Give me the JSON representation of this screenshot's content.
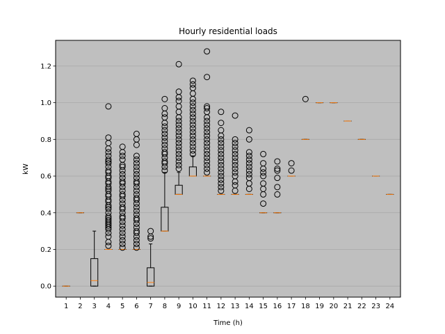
{
  "chart_data": {
    "type": "box",
    "title": "Hourly residential loads",
    "xlabel": "Time (h)",
    "ylabel": "kW",
    "categories": [
      "1",
      "2",
      "3",
      "4",
      "5",
      "6",
      "7",
      "8",
      "9",
      "10",
      "11",
      "12",
      "13",
      "14",
      "15",
      "16",
      "17",
      "18",
      "19",
      "20",
      "21",
      "22",
      "23",
      "24"
    ],
    "ylim": [
      -0.06,
      1.34
    ],
    "yticks": [
      0.0,
      0.2,
      0.4,
      0.6,
      0.8,
      1.0,
      1.2
    ],
    "ytick_labels": [
      "0.0",
      "0.2",
      "0.4",
      "0.6",
      "0.8",
      "1.0",
      "1.2"
    ],
    "grid": "horizontal",
    "colors": {
      "plot_bg": "#bfbfbf",
      "box": "#000000",
      "median": "#ff7f0e",
      "grid": "#a8a8a8",
      "frame": "#000000"
    },
    "boxes": [
      {
        "q1": 0.0,
        "median": 0.0,
        "q3": 0.0,
        "whisker_low": 0.0,
        "whisker_high": 0.0,
        "fliers": []
      },
      {
        "q1": 0.4,
        "median": 0.4,
        "q3": 0.4,
        "whisker_low": 0.4,
        "whisker_high": 0.4,
        "fliers": []
      },
      {
        "q1": 0.0,
        "median": 0.03,
        "q3": 0.15,
        "whisker_low": 0.0,
        "whisker_high": 0.3,
        "fliers": []
      },
      {
        "q1": 0.2,
        "median": 0.2,
        "q3": 0.2,
        "whisker_low": 0.2,
        "whisker_high": 0.2,
        "fliers": [
          0.22,
          0.24,
          0.27,
          0.29,
          0.31,
          0.32,
          0.33,
          0.34,
          0.35,
          0.36,
          0.37,
          0.38,
          0.4,
          0.42,
          0.43,
          0.44,
          0.46,
          0.47,
          0.49,
          0.5,
          0.52,
          0.53,
          0.54,
          0.56,
          0.57,
          0.59,
          0.6,
          0.62,
          0.63,
          0.65,
          0.67,
          0.68,
          0.69,
          0.71,
          0.73,
          0.75,
          0.78,
          0.81,
          0.98
        ]
      },
      {
        "q1": 0.2,
        "median": 0.2,
        "q3": 0.2,
        "whisker_low": 0.2,
        "whisker_high": 0.2,
        "fliers": [
          0.21,
          0.23,
          0.25,
          0.27,
          0.29,
          0.31,
          0.33,
          0.35,
          0.37,
          0.38,
          0.4,
          0.42,
          0.43,
          0.45,
          0.47,
          0.49,
          0.5,
          0.52,
          0.54,
          0.56,
          0.57,
          0.59,
          0.61,
          0.63,
          0.65,
          0.66,
          0.69,
          0.71,
          0.73,
          0.76
        ]
      },
      {
        "q1": 0.2,
        "median": 0.2,
        "q3": 0.2,
        "whisker_low": 0.2,
        "whisker_high": 0.2,
        "fliers": [
          0.21,
          0.23,
          0.25,
          0.27,
          0.29,
          0.3,
          0.32,
          0.34,
          0.36,
          0.37,
          0.39,
          0.41,
          0.43,
          0.45,
          0.47,
          0.48,
          0.5,
          0.52,
          0.54,
          0.56,
          0.57,
          0.59,
          0.61,
          0.63,
          0.65,
          0.67,
          0.69,
          0.71,
          0.77,
          0.8,
          0.83
        ]
      },
      {
        "q1": 0.0,
        "median": 0.02,
        "q3": 0.1,
        "whisker_low": 0.0,
        "whisker_high": 0.23,
        "fliers": [
          0.26,
          0.27,
          0.3
        ]
      },
      {
        "q1": 0.3,
        "median": 0.3,
        "q3": 0.43,
        "whisker_low": 0.3,
        "whisker_high": 0.62,
        "fliers": [
          0.63,
          0.65,
          0.67,
          0.68,
          0.7,
          0.72,
          0.73,
          0.75,
          0.77,
          0.79,
          0.81,
          0.83,
          0.85,
          0.87,
          0.89,
          0.92,
          0.94,
          0.97,
          1.02
        ]
      },
      {
        "q1": 0.5,
        "median": 0.5,
        "q3": 0.55,
        "whisker_low": 0.5,
        "whisker_high": 0.62,
        "fliers": [
          0.64,
          0.66,
          0.68,
          0.7,
          0.72,
          0.74,
          0.76,
          0.78,
          0.8,
          0.82,
          0.84,
          0.86,
          0.88,
          0.9,
          0.92,
          0.95,
          0.98,
          1.01,
          1.03,
          1.06,
          1.21
        ]
      },
      {
        "q1": 0.6,
        "median": 0.6,
        "q3": 0.65,
        "whisker_low": 0.6,
        "whisker_high": 0.71,
        "fliers": [
          0.72,
          0.74,
          0.76,
          0.78,
          0.8,
          0.82,
          0.84,
          0.86,
          0.88,
          0.9,
          0.92,
          0.94,
          0.96,
          0.98,
          1.0,
          1.02,
          1.05,
          1.08,
          1.1,
          1.12
        ]
      },
      {
        "q1": 0.6,
        "median": 0.6,
        "q3": 0.6,
        "whisker_low": 0.6,
        "whisker_high": 0.6,
        "fliers": [
          0.62,
          0.64,
          0.66,
          0.68,
          0.7,
          0.72,
          0.74,
          0.76,
          0.78,
          0.8,
          0.82,
          0.84,
          0.86,
          0.88,
          0.9,
          0.92,
          0.95,
          0.97,
          0.98,
          1.14,
          1.28
        ]
      },
      {
        "q1": 0.5,
        "median": 0.5,
        "q3": 0.5,
        "whisker_low": 0.5,
        "whisker_high": 0.5,
        "fliers": [
          0.52,
          0.54,
          0.56,
          0.58,
          0.6,
          0.62,
          0.64,
          0.66,
          0.68,
          0.7,
          0.72,
          0.74,
          0.76,
          0.78,
          0.8,
          0.82,
          0.85,
          0.89,
          0.95
        ]
      },
      {
        "q1": 0.5,
        "median": 0.5,
        "q3": 0.5,
        "whisker_low": 0.5,
        "whisker_high": 0.5,
        "fliers": [
          0.52,
          0.55,
          0.57,
          0.6,
          0.62,
          0.64,
          0.66,
          0.68,
          0.7,
          0.72,
          0.74,
          0.76,
          0.78,
          0.8,
          0.93
        ]
      },
      {
        "q1": 0.5,
        "median": 0.5,
        "q3": 0.5,
        "whisker_low": 0.5,
        "whisker_high": 0.5,
        "fliers": [
          0.53,
          0.56,
          0.59,
          0.61,
          0.63,
          0.65,
          0.67,
          0.69,
          0.71,
          0.73,
          0.8,
          0.85
        ]
      },
      {
        "q1": 0.4,
        "median": 0.4,
        "q3": 0.4,
        "whisker_low": 0.4,
        "whisker_high": 0.4,
        "fliers": [
          0.45,
          0.5,
          0.53,
          0.56,
          0.6,
          0.62,
          0.64,
          0.67,
          0.72
        ]
      },
      {
        "q1": 0.4,
        "median": 0.4,
        "q3": 0.4,
        "whisker_low": 0.4,
        "whisker_high": 0.4,
        "fliers": [
          0.5,
          0.54,
          0.59,
          0.63,
          0.64,
          0.68
        ]
      },
      {
        "q1": 0.6,
        "median": 0.6,
        "q3": 0.6,
        "whisker_low": 0.6,
        "whisker_high": 0.6,
        "fliers": [
          0.63,
          0.67
        ]
      },
      {
        "q1": 0.8,
        "median": 0.8,
        "q3": 0.8,
        "whisker_low": 0.8,
        "whisker_high": 0.8,
        "fliers": [
          1.02
        ]
      },
      {
        "q1": 1.0,
        "median": 1.0,
        "q3": 1.0,
        "whisker_low": 1.0,
        "whisker_high": 1.0,
        "fliers": []
      },
      {
        "q1": 1.0,
        "median": 1.0,
        "q3": 1.0,
        "whisker_low": 1.0,
        "whisker_high": 1.0,
        "fliers": []
      },
      {
        "q1": 0.9,
        "median": 0.9,
        "q3": 0.9,
        "whisker_low": 0.9,
        "whisker_high": 0.9,
        "fliers": []
      },
      {
        "q1": 0.8,
        "median": 0.8,
        "q3": 0.8,
        "whisker_low": 0.8,
        "whisker_high": 0.8,
        "fliers": []
      },
      {
        "q1": 0.6,
        "median": 0.6,
        "q3": 0.6,
        "whisker_low": 0.6,
        "whisker_high": 0.6,
        "fliers": []
      },
      {
        "q1": 0.5,
        "median": 0.5,
        "q3": 0.5,
        "whisker_low": 0.5,
        "whisker_high": 0.5,
        "fliers": []
      }
    ]
  }
}
